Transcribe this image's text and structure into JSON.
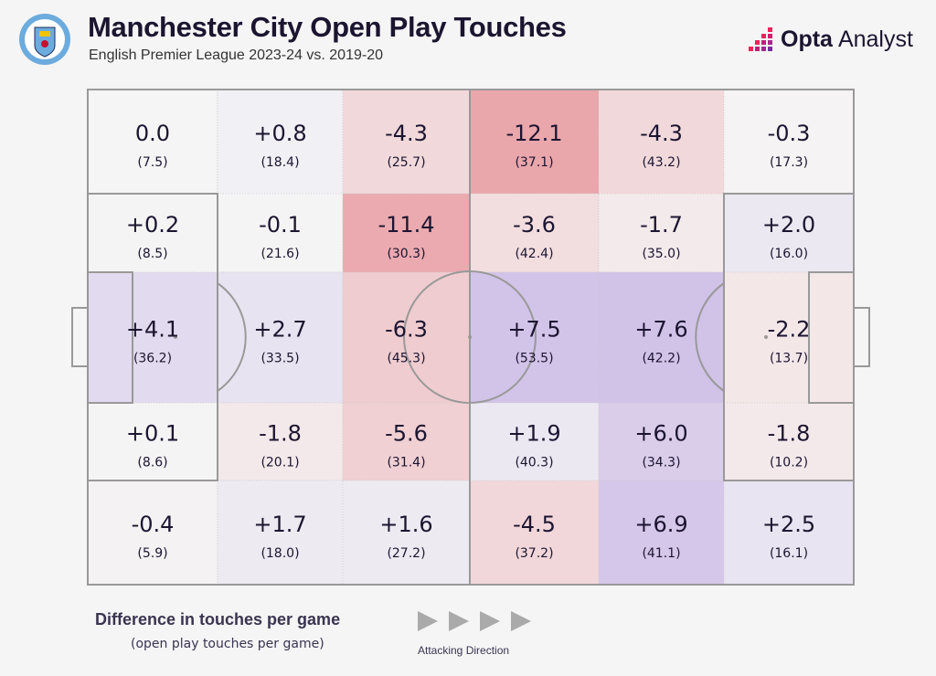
{
  "header": {
    "title": "Manchester City Open Play Touches",
    "subtitle": "English Premier League 2023-24 vs. 2019-20",
    "brand_bold": "Opta",
    "brand_light": "Analyst",
    "badge_text": "MANCHESTER CITY"
  },
  "legend": {
    "title": "Difference in touches per game",
    "subtitle": "(open play touches per game)",
    "direction": "Attacking Direction"
  },
  "colors": {
    "positive": "#cdbce6",
    "negative": "#e9a3a9",
    "neutral": "#f5f5f5"
  },
  "chart_data": {
    "type": "heatmap",
    "title": "Manchester City Open Play Touches",
    "rows": 5,
    "cols": 6,
    "diff": [
      [
        "0.0",
        "+0.8",
        "-4.3",
        "-12.1",
        "-4.3",
        "-0.3"
      ],
      [
        "+0.2",
        "-0.1",
        "-11.4",
        "-3.6",
        "-1.7",
        "+2.0"
      ],
      [
        "+4.1",
        "+2.7",
        "-6.3",
        "+7.5",
        "+7.6",
        "-2.2"
      ],
      [
        "+0.1",
        "-1.8",
        "-5.6",
        "+1.9",
        "+6.0",
        "-1.8"
      ],
      [
        "-0.4",
        "+1.7",
        "+1.6",
        "-4.5",
        "+6.9",
        "+2.5"
      ]
    ],
    "touches": [
      [
        "7.5",
        "18.4",
        "25.7",
        "37.1",
        "43.2",
        "17.3"
      ],
      [
        "8.5",
        "21.6",
        "30.3",
        "42.4",
        "35.0",
        "16.0"
      ],
      [
        "36.2",
        "33.5",
        "45.3",
        "53.5",
        "42.2",
        "13.7"
      ],
      [
        "8.6",
        "20.1",
        "31.4",
        "40.3",
        "34.3",
        "10.2"
      ],
      [
        "5.9",
        "18.0",
        "27.2",
        "37.2",
        "41.1",
        "16.1"
      ]
    ]
  }
}
